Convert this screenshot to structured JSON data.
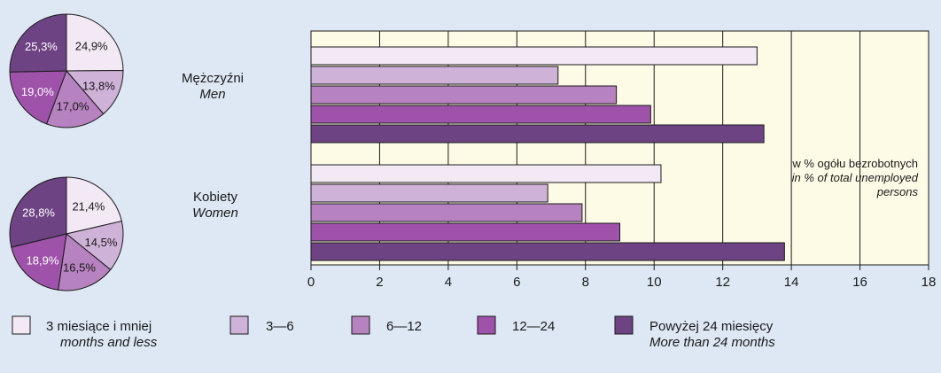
{
  "chart_data": [
    {
      "type": "pie",
      "group": "men",
      "categories": [
        "3 miesiące i mniej",
        "3—6",
        "6—12",
        "12—24",
        "Powyżej 24 miesięcy"
      ],
      "values": [
        24.9,
        13.8,
        17.0,
        19.0,
        25.3
      ],
      "labels": [
        "24,9%",
        "13,8%",
        "17,0%",
        "19,0%",
        "25,3%"
      ]
    },
    {
      "type": "pie",
      "group": "women",
      "categories": [
        "3 miesiące i mniej",
        "3—6",
        "6—12",
        "12—24",
        "Powyżej 24 miesięcy"
      ],
      "values": [
        21.4,
        14.5,
        16.5,
        18.9,
        28.8
      ],
      "labels": [
        "21,4%",
        "14,5%",
        "16,5%",
        "18,9%",
        "28,8%"
      ]
    },
    {
      "type": "bar",
      "orientation": "horizontal",
      "categories": [
        {
          "pl": "Mężczyźni",
          "en": "Men"
        },
        {
          "pl": "Kobiety",
          "en": "Women"
        }
      ],
      "series": [
        {
          "name": "3 miesiące i mniej",
          "name_en": "months and less",
          "color": "#f2e9f4",
          "values": [
            13.0,
            10.2
          ]
        },
        {
          "name": "3—6",
          "name_en": "",
          "color": "#cfb2d8",
          "values": [
            7.2,
            6.9
          ]
        },
        {
          "name": "6—12",
          "name_en": "",
          "color": "#b682c0",
          "values": [
            8.9,
            7.9
          ]
        },
        {
          "name": "12—24",
          "name_en": "",
          "color": "#9e52a9",
          "values": [
            9.9,
            9.0
          ]
        },
        {
          "name": "Powyżej 24 miesięcy",
          "name_en": "More than 24 months",
          "color": "#6e4384",
          "values": [
            13.2,
            13.8
          ]
        }
      ],
      "xlim": [
        0,
        18
      ],
      "xticks": [
        0,
        2,
        4,
        6,
        8,
        10,
        12,
        14,
        16,
        18
      ],
      "grid": true,
      "note": {
        "pl": "w % ogółu bezrobotnych",
        "en_line1": "in % of total unemployed",
        "en_line2": "persons"
      }
    }
  ],
  "colors": {
    "background": "#dde8f4",
    "plot_background": "#fdfbe6",
    "stroke": "#1a1a1a"
  }
}
